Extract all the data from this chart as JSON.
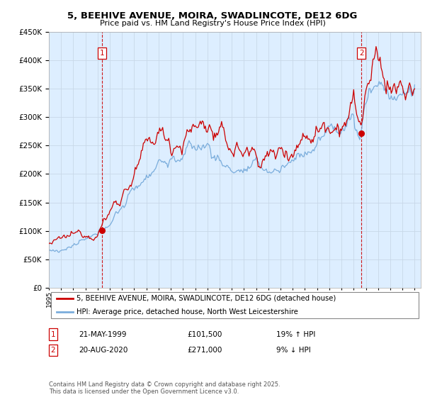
{
  "title_line1": "5, BEEHIVE AVENUE, MOIRA, SWADLINCOTE, DE12 6DG",
  "title_line2": "Price paid vs. HM Land Registry's House Price Index (HPI)",
  "legend_line1": "5, BEEHIVE AVENUE, MOIRA, SWADLINCOTE, DE12 6DG (detached house)",
  "legend_line2": "HPI: Average price, detached house, North West Leicestershire",
  "footnote": "Contains HM Land Registry data © Crown copyright and database right 2025.\nThis data is licensed under the Open Government Licence v3.0.",
  "sale1_label": "1",
  "sale1_date": "21-MAY-1999",
  "sale1_price": "£101,500",
  "sale1_hpi": "19% ↑ HPI",
  "sale1_year": 1999.38,
  "sale1_value": 101500,
  "sale2_label": "2",
  "sale2_date": "20-AUG-2020",
  "sale2_price": "£271,000",
  "sale2_hpi": "9% ↓ HPI",
  "sale2_year": 2020.63,
  "sale2_value": 271000,
  "red_color": "#cc0000",
  "blue_color": "#7aaddc",
  "chart_bg_color": "#ddeeff",
  "background_color": "#ffffff",
  "grid_color": "#c8d8e8",
  "ylim_min": 0,
  "ylim_max": 450000,
  "xlim_min": 1995.0,
  "xlim_max": 2025.5
}
